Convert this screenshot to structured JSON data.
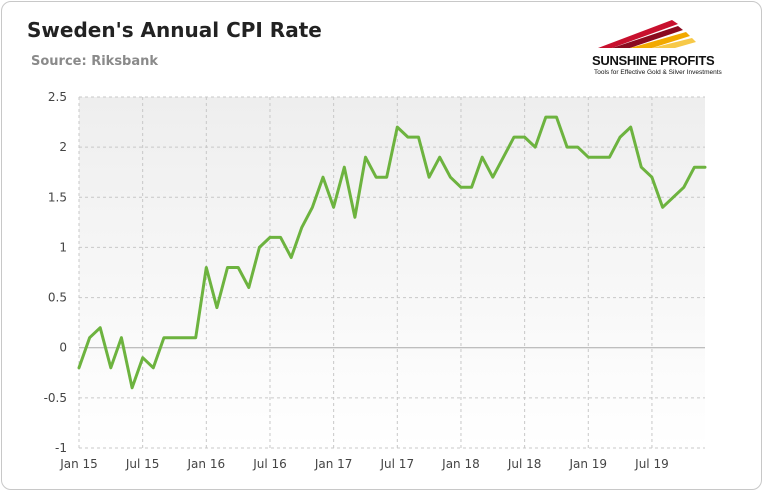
{
  "chart_data": {
    "type": "line",
    "title": "Sweden's Annual CPI Rate",
    "subtitle": "Source: Riksbank",
    "xlabel": "",
    "ylabel": "",
    "ylim": [
      -1,
      2.5
    ],
    "yticks": [
      -1,
      -0.5,
      0,
      0.5,
      1,
      1.5,
      2,
      2.5
    ],
    "ytick_labels": [
      "-1",
      "-0.5",
      "0",
      "0.5",
      "1",
      "1.5",
      "2",
      "2.5"
    ],
    "xtick_labels": [
      {
        "label": "Jan 15",
        "index": 0
      },
      {
        "label": "Jul 15",
        "index": 6
      },
      {
        "label": "Jan 16",
        "index": 12
      },
      {
        "label": "Jul 16",
        "index": 18
      },
      {
        "label": "Jan 17",
        "index": 24
      },
      {
        "label": "Jul 17",
        "index": 30
      },
      {
        "label": "Jan 18",
        "index": 36
      },
      {
        "label": "Jul 18",
        "index": 42
      },
      {
        "label": "Jan 19",
        "index": 48
      },
      {
        "label": "Jul 19",
        "index": 54
      }
    ],
    "grid": true,
    "legend": "none",
    "series": [
      {
        "name": "CPI annual rate",
        "color": "#6db33f",
        "values": [
          -0.2,
          0.1,
          0.2,
          -0.2,
          0.1,
          -0.4,
          -0.1,
          -0.2,
          0.1,
          0.1,
          0.1,
          0.1,
          0.8,
          0.4,
          0.8,
          0.8,
          0.6,
          1.0,
          1.1,
          1.1,
          0.9,
          1.2,
          1.4,
          1.7,
          1.4,
          1.8,
          1.3,
          1.9,
          1.7,
          1.7,
          2.2,
          2.1,
          2.1,
          1.7,
          1.9,
          1.7,
          1.6,
          1.6,
          1.9,
          1.7,
          1.9,
          2.1,
          2.1,
          2.0,
          2.3,
          2.3,
          2.0,
          2.0,
          1.9,
          1.9,
          1.9,
          2.1,
          2.2,
          1.8,
          1.7,
          1.4,
          1.5,
          1.6,
          1.8,
          1.8
        ]
      }
    ]
  },
  "logo": {
    "name": "SUNSHINE PROFITS",
    "tagline": "Tools for Effective Gold & Silver Investments"
  },
  "colors": {
    "line": "#6db33f",
    "grid": "#c8c8c8",
    "plot_bg_top": "#eeeeee",
    "plot_bg_bottom": "#ffffff",
    "zero_line": "#aaaaaa"
  }
}
